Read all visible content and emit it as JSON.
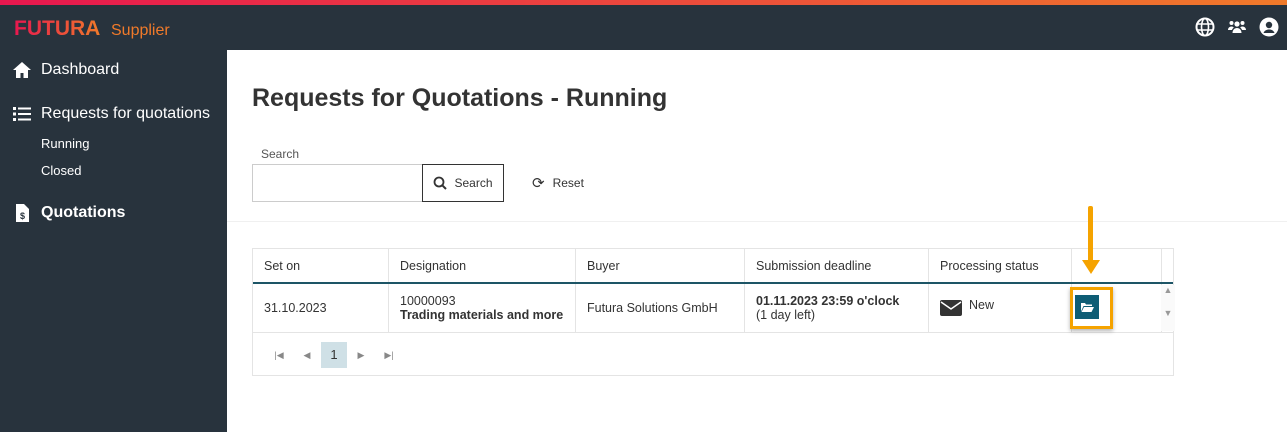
{
  "header": {
    "brand": "FUTURA",
    "brand_sub": "Supplier",
    "icons": [
      "globe-icon",
      "users-icon",
      "user-circle-icon"
    ]
  },
  "sidebar": {
    "items": [
      {
        "label": "Dashboard",
        "icon": "home-icon"
      },
      {
        "label": "Requests for quotations",
        "icon": "list-icon",
        "children": [
          "Running",
          "Closed"
        ]
      },
      {
        "label": "Quotations",
        "icon": "invoice-dollar-icon"
      }
    ]
  },
  "main": {
    "title": "Requests for Quotations - Running",
    "search_label": "Search",
    "search_value": "",
    "search_button": "Search",
    "reset_button": "Reset"
  },
  "table": {
    "columns": [
      "Set on",
      "Designation",
      "Buyer",
      "Submission deadline",
      "Processing status",
      ""
    ],
    "rows": [
      {
        "set_on": "31.10.2023",
        "designation_no": "10000093",
        "designation": "Trading materials and more",
        "buyer": "Futura Solutions GmbH",
        "deadline": "01.11.2023 23:59 o'clock",
        "deadline_note": "(1 day left)",
        "status": "New",
        "status_icon": "envelope-icon",
        "action_icon": "folder-open-icon"
      }
    ],
    "pager": {
      "current": "1"
    }
  },
  "colors": {
    "accent": "#0e5d75",
    "highlight": "#f5a300",
    "sidebar": "#28333d"
  }
}
